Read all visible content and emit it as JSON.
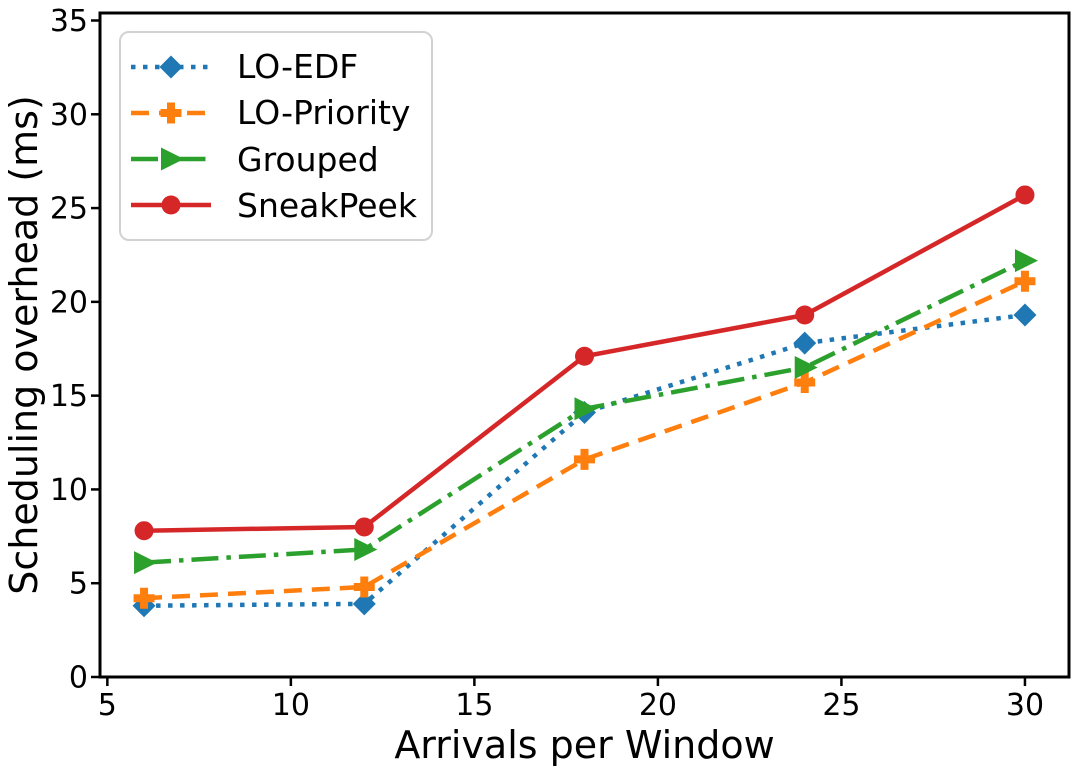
{
  "chart_data": {
    "type": "line",
    "title": "",
    "xlabel": "Arrivals per Window",
    "ylabel": "Scheduling overhead (ms)",
    "x": [
      6,
      12,
      18,
      24,
      30
    ],
    "xticks": [
      5,
      10,
      15,
      20,
      25,
      30
    ],
    "yticks": [
      0,
      5,
      10,
      15,
      20,
      25,
      30,
      35
    ],
    "xlim": [
      4.8,
      31.2
    ],
    "ylim": [
      0,
      35.4
    ],
    "grid": false,
    "legend_position": "upper-left",
    "axis_color": "#000000",
    "background": "#ffffff",
    "series": [
      {
        "name": "LO-EDF",
        "color": "#1f77b4",
        "line_style": "dotted",
        "marker": "diamond",
        "values": [
          3.8,
          3.9,
          14.1,
          17.8,
          19.3
        ]
      },
      {
        "name": "LO-Priority",
        "color": "#ff7f0e",
        "line_style": "dashed",
        "marker": "plus",
        "values": [
          4.2,
          4.8,
          11.6,
          15.7,
          21.1
        ]
      },
      {
        "name": "Grouped",
        "color": "#2ca02c",
        "line_style": "dashdot",
        "marker": "triangle-right",
        "values": [
          6.1,
          6.8,
          14.3,
          16.5,
          22.2
        ]
      },
      {
        "name": "SneakPeek",
        "color": "#d62728",
        "line_style": "solid",
        "marker": "circle",
        "values": [
          7.8,
          8.0,
          17.1,
          19.3,
          25.7
        ]
      }
    ]
  }
}
